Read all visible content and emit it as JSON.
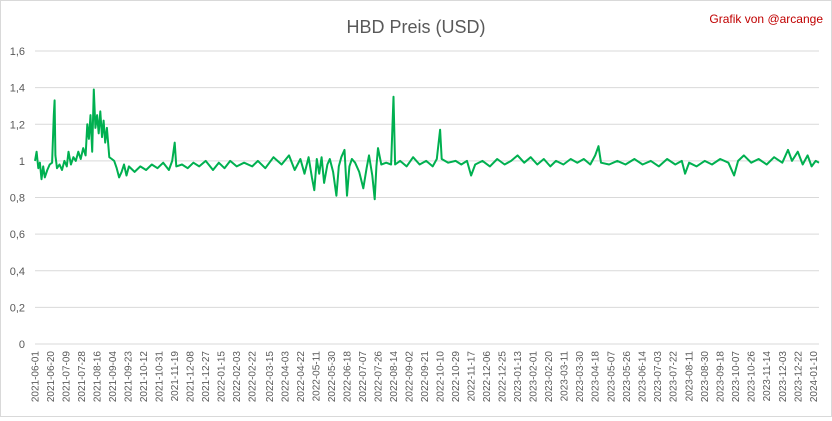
{
  "title": "HBD Preis (USD)",
  "credit": "Grafik von @arcange",
  "colors": {
    "series": "#00b050",
    "credit": "#c00000",
    "grid": "#d9d9d9",
    "text": "#595959"
  },
  "chart_data": {
    "type": "line",
    "title": "HBD Preis (USD)",
    "xlabel": "",
    "ylabel": "",
    "ylim": [
      0,
      1.6
    ],
    "grid": "horizontal",
    "legend": "none",
    "y_ticks": [
      "0",
      "0,2",
      "0,4",
      "0,6",
      "0,8",
      "1",
      "1,2",
      "1,4",
      "1,6"
    ],
    "x_tick_labels": [
      "2021-06-01",
      "2021-06-20",
      "2021-07-09",
      "2021-07-28",
      "2021-08-16",
      "2021-09-04",
      "2021-09-23",
      "2021-10-12",
      "2021-10-31",
      "2021-11-19",
      "2021-12-08",
      "2021-12-27",
      "2022-01-15",
      "2022-02-03",
      "2022-02-22",
      "2022-03-15",
      "2022-04-03",
      "2022-04-22",
      "2022-05-11",
      "2022-05-30",
      "2022-06-18",
      "2022-07-07",
      "2022-07-26",
      "2022-08-14",
      "2022-09-02",
      "2022-09-21",
      "2022-10-10",
      "2022-10-29",
      "2022-11-17",
      "2022-12-06",
      "2022-12-25",
      "2023-01-13",
      "2023-02-01",
      "2023-02-20",
      "2023-03-11",
      "2023-03-30",
      "2023-04-18",
      "2023-05-07",
      "2023-05-26",
      "2023-06-14",
      "2023-07-03",
      "2023-07-22",
      "2023-08-11",
      "2023-08-30",
      "2023-09-18",
      "2023-10-07",
      "2023-10-26",
      "2023-11-14",
      "2023-12-03",
      "2023-12-22",
      "2024-01-10"
    ],
    "series": [
      {
        "values": [
          [
            "2021-06-01",
            1.0
          ],
          [
            "2021-06-03",
            1.05
          ],
          [
            "2021-06-05",
            0.96
          ],
          [
            "2021-06-07",
            0.99
          ],
          [
            "2021-06-09",
            0.9
          ],
          [
            "2021-06-11",
            0.97
          ],
          [
            "2021-06-13",
            0.91
          ],
          [
            "2021-06-16",
            0.95
          ],
          [
            "2021-06-19",
            0.98
          ],
          [
            "2021-06-22",
            0.99
          ],
          [
            "2021-06-24",
            1.25
          ],
          [
            "2021-06-25",
            1.33
          ],
          [
            "2021-06-26",
            1.03
          ],
          [
            "2021-06-28",
            0.96
          ],
          [
            "2021-07-01",
            0.98
          ],
          [
            "2021-07-04",
            0.95
          ],
          [
            "2021-07-07",
            1.0
          ],
          [
            "2021-07-10",
            0.97
          ],
          [
            "2021-07-12",
            1.05
          ],
          [
            "2021-07-15",
            0.98
          ],
          [
            "2021-07-18",
            1.02
          ],
          [
            "2021-07-21",
            1.0
          ],
          [
            "2021-07-24",
            1.05
          ],
          [
            "2021-07-27",
            1.01
          ],
          [
            "2021-07-30",
            1.07
          ],
          [
            "2021-08-02",
            1.03
          ],
          [
            "2021-08-04",
            1.2
          ],
          [
            "2021-08-06",
            1.12
          ],
          [
            "2021-08-08",
            1.25
          ],
          [
            "2021-08-10",
            1.05
          ],
          [
            "2021-08-12",
            1.39
          ],
          [
            "2021-08-14",
            1.18
          ],
          [
            "2021-08-16",
            1.25
          ],
          [
            "2021-08-18",
            1.15
          ],
          [
            "2021-08-20",
            1.27
          ],
          [
            "2021-08-22",
            1.13
          ],
          [
            "2021-08-24",
            1.22
          ],
          [
            "2021-08-26",
            1.1
          ],
          [
            "2021-08-28",
            1.18
          ],
          [
            "2021-08-31",
            1.02
          ],
          [
            "2021-09-03",
            1.01
          ],
          [
            "2021-09-06",
            1.0
          ],
          [
            "2021-09-09",
            0.96
          ],
          [
            "2021-09-12",
            0.91
          ],
          [
            "2021-09-15",
            0.94
          ],
          [
            "2021-09-18",
            0.98
          ],
          [
            "2021-09-21",
            0.92
          ],
          [
            "2021-09-24",
            0.97
          ],
          [
            "2021-10-01",
            0.94
          ],
          [
            "2021-10-08",
            0.97
          ],
          [
            "2021-10-15",
            0.95
          ],
          [
            "2021-10-22",
            0.98
          ],
          [
            "2021-10-29",
            0.96
          ],
          [
            "2021-11-05",
            0.99
          ],
          [
            "2021-11-12",
            0.95
          ],
          [
            "2021-11-16",
            1.0
          ],
          [
            "2021-11-19",
            1.1
          ],
          [
            "2021-11-21",
            0.97
          ],
          [
            "2021-11-28",
            0.98
          ],
          [
            "2021-12-05",
            0.96
          ],
          [
            "2021-12-12",
            0.99
          ],
          [
            "2021-12-19",
            0.97
          ],
          [
            "2021-12-27",
            1.0
          ],
          [
            "2022-01-05",
            0.95
          ],
          [
            "2022-01-12",
            0.99
          ],
          [
            "2022-01-19",
            0.96
          ],
          [
            "2022-01-26",
            1.0
          ],
          [
            "2022-02-03",
            0.97
          ],
          [
            "2022-02-12",
            0.99
          ],
          [
            "2022-02-22",
            0.97
          ],
          [
            "2022-03-01",
            1.0
          ],
          [
            "2022-03-10",
            0.96
          ],
          [
            "2022-03-20",
            1.02
          ],
          [
            "2022-03-30",
            0.98
          ],
          [
            "2022-04-08",
            1.03
          ],
          [
            "2022-04-15",
            0.95
          ],
          [
            "2022-04-22",
            1.01
          ],
          [
            "2022-04-27",
            0.93
          ],
          [
            "2022-05-02",
            1.02
          ],
          [
            "2022-05-06",
            0.91
          ],
          [
            "2022-05-09",
            0.84
          ],
          [
            "2022-05-12",
            1.01
          ],
          [
            "2022-05-15",
            0.93
          ],
          [
            "2022-05-18",
            1.02
          ],
          [
            "2022-05-21",
            0.88
          ],
          [
            "2022-05-25",
            0.98
          ],
          [
            "2022-05-28",
            1.01
          ],
          [
            "2022-06-01",
            0.94
          ],
          [
            "2022-06-05",
            0.81
          ],
          [
            "2022-06-08",
            0.97
          ],
          [
            "2022-06-11",
            1.02
          ],
          [
            "2022-06-15",
            1.06
          ],
          [
            "2022-06-18",
            0.81
          ],
          [
            "2022-06-21",
            0.97
          ],
          [
            "2022-06-24",
            1.01
          ],
          [
            "2022-06-28",
            0.99
          ],
          [
            "2022-07-03",
            0.94
          ],
          [
            "2022-07-08",
            0.85
          ],
          [
            "2022-07-12",
            0.96
          ],
          [
            "2022-07-15",
            1.03
          ],
          [
            "2022-07-19",
            0.92
          ],
          [
            "2022-07-22",
            0.79
          ],
          [
            "2022-07-24",
            0.97
          ],
          [
            "2022-07-26",
            1.07
          ],
          [
            "2022-07-30",
            0.98
          ],
          [
            "2022-08-05",
            0.99
          ],
          [
            "2022-08-11",
            0.98
          ],
          [
            "2022-08-14",
            1.35
          ],
          [
            "2022-08-16",
            0.98
          ],
          [
            "2022-08-22",
            1.0
          ],
          [
            "2022-08-30",
            0.97
          ],
          [
            "2022-09-07",
            1.02
          ],
          [
            "2022-09-15",
            0.98
          ],
          [
            "2022-09-23",
            1.0
          ],
          [
            "2022-10-01",
            0.97
          ],
          [
            "2022-10-06",
            1.01
          ],
          [
            "2022-10-10",
            1.17
          ],
          [
            "2022-10-12",
            1.01
          ],
          [
            "2022-10-20",
            0.99
          ],
          [
            "2022-10-29",
            1.0
          ],
          [
            "2022-11-05",
            0.98
          ],
          [
            "2022-11-12",
            1.0
          ],
          [
            "2022-11-17",
            0.92
          ],
          [
            "2022-11-22",
            0.98
          ],
          [
            "2022-12-01",
            1.0
          ],
          [
            "2022-12-10",
            0.97
          ],
          [
            "2022-12-19",
            1.01
          ],
          [
            "2022-12-28",
            0.98
          ],
          [
            "2023-01-05",
            1.0
          ],
          [
            "2023-01-13",
            1.03
          ],
          [
            "2023-01-21",
            0.99
          ],
          [
            "2023-01-29",
            1.02
          ],
          [
            "2023-02-06",
            0.98
          ],
          [
            "2023-02-14",
            1.01
          ],
          [
            "2023-02-22",
            0.97
          ],
          [
            "2023-03-01",
            1.0
          ],
          [
            "2023-03-10",
            0.98
          ],
          [
            "2023-03-19",
            1.01
          ],
          [
            "2023-03-27",
            0.99
          ],
          [
            "2023-04-04",
            1.01
          ],
          [
            "2023-04-12",
            0.98
          ],
          [
            "2023-04-18",
            1.03
          ],
          [
            "2023-04-22",
            1.08
          ],
          [
            "2023-04-25",
            0.99
          ],
          [
            "2023-05-05",
            0.98
          ],
          [
            "2023-05-15",
            1.0
          ],
          [
            "2023-05-25",
            0.98
          ],
          [
            "2023-06-05",
            1.01
          ],
          [
            "2023-06-15",
            0.98
          ],
          [
            "2023-06-25",
            1.0
          ],
          [
            "2023-07-05",
            0.97
          ],
          [
            "2023-07-15",
            1.01
          ],
          [
            "2023-07-25",
            0.98
          ],
          [
            "2023-08-02",
            1.0
          ],
          [
            "2023-08-06",
            0.93
          ],
          [
            "2023-08-11",
            0.99
          ],
          [
            "2023-08-20",
            0.97
          ],
          [
            "2023-08-30",
            1.0
          ],
          [
            "2023-09-08",
            0.98
          ],
          [
            "2023-09-18",
            1.01
          ],
          [
            "2023-09-28",
            0.99
          ],
          [
            "2023-10-05",
            0.92
          ],
          [
            "2023-10-10",
            1.0
          ],
          [
            "2023-10-17",
            1.03
          ],
          [
            "2023-10-26",
            0.99
          ],
          [
            "2023-11-04",
            1.01
          ],
          [
            "2023-11-14",
            0.98
          ],
          [
            "2023-11-23",
            1.02
          ],
          [
            "2023-12-03",
            0.99
          ],
          [
            "2023-12-10",
            1.06
          ],
          [
            "2023-12-15",
            1.0
          ],
          [
            "2023-12-22",
            1.05
          ],
          [
            "2023-12-28",
            0.98
          ],
          [
            "2024-01-03",
            1.03
          ],
          [
            "2024-01-08",
            0.97
          ],
          [
            "2024-01-13",
            1.0
          ],
          [
            "2024-01-17",
            0.99
          ]
        ]
      }
    ]
  }
}
